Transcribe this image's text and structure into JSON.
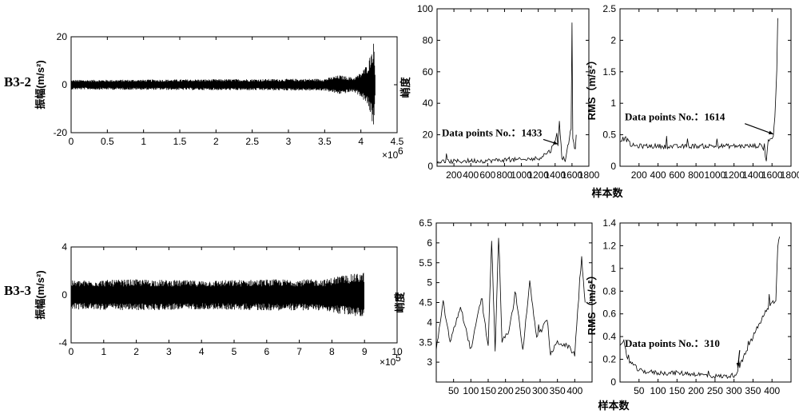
{
  "chart_data": [
    {
      "type": "line",
      "row_label": "B3-2",
      "ylabel": "振幅(m/s²)",
      "xlim": [
        0,
        4500000
      ],
      "ylim": [
        -20,
        20
      ],
      "x_ticks": [
        "0",
        "0.5",
        "1",
        "1.5",
        "2",
        "2.5",
        "3",
        "3.5",
        "4",
        "4.5"
      ],
      "y_ticks": [
        "20",
        "0",
        "-20"
      ],
      "x_multiplier": "×10",
      "x_multiplier_exp": "6",
      "envelope": [
        [
          0,
          2
        ],
        [
          3500000,
          2.5
        ],
        [
          3700000,
          4
        ],
        [
          3900000,
          3
        ],
        [
          4000000,
          5
        ],
        [
          4100000,
          9
        ],
        [
          4150000,
          15
        ],
        [
          4180000,
          18
        ],
        [
          4200000,
          2
        ]
      ]
    },
    {
      "type": "line",
      "row_label": "",
      "ylabel": "峭度",
      "xlabel": "样本数",
      "xlim": [
        0,
        1800
      ],
      "ylim": [
        0,
        100
      ],
      "x_ticks": [
        "200",
        "400",
        "600",
        "800",
        "1000",
        "1200",
        "1400",
        "1600",
        "1800"
      ],
      "y_ticks": [
        "0",
        "20",
        "40",
        "60",
        "80",
        "100"
      ],
      "annotation": "Data points No.：1433",
      "annotation_x": 1433,
      "series": [
        {
          "x": [
            0,
            200,
            400,
            600,
            800,
            1000,
            1200,
            1350,
            1420,
            1433,
            1450,
            1480,
            1520,
            1560,
            1590,
            1600,
            1610,
            1640,
            1650
          ],
          "y": [
            3,
            3,
            3.5,
            3.5,
            4,
            4,
            5,
            10,
            20,
            12,
            28,
            6,
            4,
            15,
            25,
            92,
            18,
            10,
            20
          ]
        }
      ]
    },
    {
      "type": "line",
      "row_label": "",
      "ylabel": "RMS（m/s²）",
      "xlabel": "",
      "xlim": [
        0,
        1800
      ],
      "ylim": [
        0,
        2.5
      ],
      "x_ticks": [
        "200",
        "400",
        "600",
        "800",
        "1000",
        "1200",
        "1400",
        "1600",
        "1800"
      ],
      "y_ticks": [
        "0",
        "0.5",
        "1",
        "1.5",
        "2",
        "2.5"
      ],
      "annotation": "Data points No.：1614",
      "annotation_x": 1614,
      "series": [
        {
          "x": [
            0,
            60,
            120,
            200,
            400,
            600,
            800,
            1000,
            1200,
            1400,
            1500,
            1540,
            1560,
            1600,
            1614,
            1630,
            1650,
            1660
          ],
          "y": [
            0.42,
            0.44,
            0.33,
            0.32,
            0.32,
            0.31,
            0.32,
            0.32,
            0.32,
            0.32,
            0.33,
            0.1,
            0.42,
            0.45,
            0.46,
            0.8,
            1.5,
            2.35
          ]
        }
      ]
    },
    {
      "type": "line",
      "row_label": "B3-3",
      "ylabel": "振幅(m/s²)",
      "xlim": [
        0,
        1000000
      ],
      "ylim": [
        -4,
        4
      ],
      "x_ticks": [
        "0",
        "1",
        "2",
        "3",
        "4",
        "5",
        "6",
        "7",
        "8",
        "9",
        "10"
      ],
      "y_ticks": [
        "4",
        "0",
        "-4"
      ],
      "x_multiplier": "×10",
      "x_multiplier_exp": "5",
      "envelope": [
        [
          0,
          1.2
        ],
        [
          200000,
          1.3
        ],
        [
          400000,
          1.2
        ],
        [
          600000,
          1.3
        ],
        [
          780000,
          1.3
        ],
        [
          820000,
          1.6
        ],
        [
          880000,
          1.8
        ],
        [
          900000,
          1.9
        ]
      ]
    },
    {
      "type": "line",
      "row_label": "",
      "ylabel": "峭度",
      "xlabel": "样本数",
      "xlim": [
        0,
        450
      ],
      "ylim": [
        2.5,
        6.5
      ],
      "x_ticks": [
        "50",
        "100",
        "150",
        "200",
        "250",
        "300",
        "350",
        "400"
      ],
      "y_ticks": [
        "3",
        "3.5",
        "4",
        "4.5",
        "5",
        "5.5",
        "6",
        "6.5"
      ],
      "series": [
        {
          "x": [
            0,
            20,
            40,
            70,
            100,
            130,
            150,
            160,
            170,
            180,
            190,
            210,
            230,
            250,
            270,
            290,
            310,
            320,
            330,
            350,
            380,
            400,
            420,
            425,
            430
          ],
          "y": [
            3.3,
            4.5,
            3.5,
            4.4,
            3.3,
            4.6,
            3.4,
            6.1,
            3.3,
            6.1,
            3.5,
            3.8,
            4.7,
            3.3,
            5.0,
            3.6,
            3.9,
            4.1,
            3.2,
            3.5,
            3.4,
            3.2,
            5.7,
            5.0,
            4.5
          ]
        }
      ]
    },
    {
      "type": "line",
      "row_label": "",
      "ylabel": "RMS（m/s²）",
      "xlabel": "",
      "xlim": [
        0,
        450
      ],
      "ylim": [
        0,
        1.4
      ],
      "x_ticks": [
        "50",
        "100",
        "150",
        "200",
        "250",
        "300",
        "350",
        "400"
      ],
      "y_ticks": [
        "0",
        "0.2",
        "0.4",
        "0.6",
        "0.8",
        "1",
        "1.2",
        "1.4"
      ],
      "annotation": "Data points No.：310",
      "annotation_x": 310,
      "series": [
        {
          "x": [
            0,
            10,
            20,
            50,
            100,
            150,
            200,
            250,
            280,
            300,
            310,
            330,
            350,
            380,
            400,
            410,
            415,
            420
          ],
          "y": [
            0.3,
            0.35,
            0.2,
            0.1,
            0.08,
            0.08,
            0.07,
            0.05,
            0.05,
            0.06,
            0.1,
            0.25,
            0.4,
            0.6,
            0.7,
            0.7,
            1.2,
            1.28
          ]
        }
      ]
    }
  ]
}
